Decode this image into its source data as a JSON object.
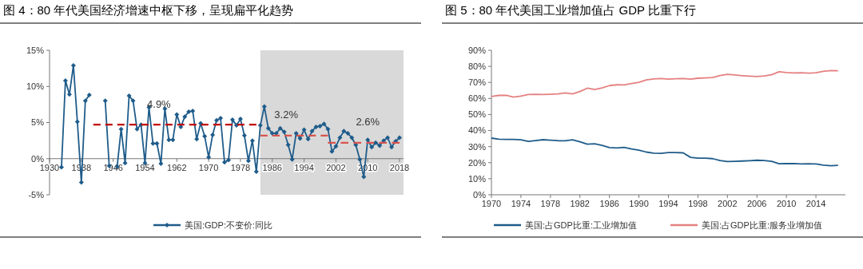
{
  "chart_data": [
    {
      "type": "line",
      "title": "图 4：80 年代美国经济增速中枢下移，呈现扁平化趋势",
      "x": [
        1933,
        1934,
        1935,
        1936,
        1937,
        1938,
        1939,
        1940,
        1941,
        1942,
        1943,
        1944,
        1945,
        1946,
        1947,
        1948,
        1949,
        1950,
        1951,
        1952,
        1953,
        1954,
        1955,
        1956,
        1957,
        1958,
        1959,
        1960,
        1961,
        1962,
        1963,
        1964,
        1965,
        1966,
        1967,
        1968,
        1969,
        1970,
        1971,
        1972,
        1973,
        1974,
        1975,
        1976,
        1977,
        1978,
        1979,
        1980,
        1981,
        1982,
        1983,
        1984,
        1985,
        1986,
        1987,
        1988,
        1989,
        1990,
        1991,
        1992,
        1993,
        1994,
        1995,
        1996,
        1997,
        1998,
        1999,
        2000,
        2001,
        2002,
        2003,
        2004,
        2005,
        2006,
        2007,
        2008,
        2009,
        2010,
        2011,
        2012,
        2013,
        2014,
        2015,
        2016,
        2017,
        2018
      ],
      "series": [
        {
          "name": "美国:GDP:不变价:同比",
          "color": "#1f5c8a",
          "values": [
            -1.2,
            10.8,
            8.9,
            12.9,
            5.1,
            -3.3,
            8.0,
            8.8,
            null,
            null,
            null,
            8.0,
            -1.0,
            null,
            -1.1,
            4.1,
            -0.6,
            8.7,
            8.0,
            4.1,
            4.7,
            -0.6,
            7.1,
            2.1,
            2.1,
            -0.7,
            6.9,
            2.6,
            2.6,
            6.1,
            4.4,
            5.8,
            6.5,
            6.6,
            2.7,
            4.9,
            3.1,
            0.2,
            3.3,
            5.3,
            5.6,
            -0.5,
            -0.2,
            5.4,
            4.6,
            5.5,
            3.2,
            -0.3,
            2.5,
            -1.8,
            4.6,
            7.2,
            4.2,
            3.5,
            3.5,
            4.2,
            3.7,
            1.9,
            -0.1,
            3.5,
            2.8,
            4.0,
            2.7,
            3.8,
            4.4,
            4.5,
            4.8,
            4.1,
            1.0,
            1.7,
            2.9,
            3.8,
            3.5,
            2.9,
            1.9,
            -0.1,
            -2.5,
            2.6,
            1.6,
            2.2,
            1.8,
            2.5,
            2.9,
            1.6,
            2.4,
            2.9
          ]
        },
        {
          "type": "line",
          "color": "#c00000",
          "x": [
            1941,
            1982
          ],
          "values": [
            4.7,
            4.7
          ],
          "line_style": "dashed",
          "marker": "none"
        },
        {
          "type": "line",
          "color": "#d9534f",
          "x": [
            1983,
            2000
          ],
          "values": [
            3.2,
            3.2
          ],
          "line_style": "dashed",
          "marker": "none"
        },
        {
          "type": "line",
          "color": "#d9534f",
          "x": [
            2000,
            2018
          ],
          "values": [
            2.2,
            2.2
          ],
          "line_style": "dashed",
          "marker": "none"
        }
      ],
      "xlim": [
        1930,
        2019
      ],
      "xticks": [
        1930,
        1938,
        1946,
        1954,
        1962,
        1970,
        1978,
        1986,
        1994,
        2002,
        2010,
        2018
      ],
      "ylim": [
        -5,
        15
      ],
      "yticks": [
        {
          "value": -5,
          "label": "-5%"
        },
        {
          "value": 0,
          "label": "0%"
        },
        {
          "value": 5,
          "label": "5%"
        },
        {
          "value": 10,
          "label": "10%"
        },
        {
          "value": 15,
          "label": "15%"
        }
      ],
      "bands": [
        {
          "axis": "x",
          "from": 1983,
          "to": 2019,
          "color": "#d9d9d9"
        }
      ],
      "annotations": [
        {
          "text": "4.9%",
          "x": 1957.5,
          "y": 4.7
        },
        {
          "text": "3.2%",
          "x": 1989.5,
          "y": 3.2
        },
        {
          "text": "2.6%",
          "x": 2010,
          "y": 2.2
        }
      ],
      "marker": "diamond",
      "legend": "bottom",
      "grid": false
    },
    {
      "type": "line",
      "title": "图 5：80 年代美国工业增加值占 GDP 比重下行",
      "x": [
        1970,
        1971,
        1972,
        1973,
        1974,
        1975,
        1976,
        1977,
        1978,
        1979,
        1980,
        1981,
        1982,
        1983,
        1984,
        1985,
        1986,
        1987,
        1988,
        1989,
        1990,
        1991,
        1992,
        1993,
        1994,
        1995,
        1996,
        1997,
        1998,
        1999,
        2000,
        2001,
        2002,
        2003,
        2004,
        2005,
        2006,
        2007,
        2008,
        2009,
        2010,
        2011,
        2012,
        2013,
        2014,
        2015,
        2016,
        2017
      ],
      "series": [
        {
          "name": "美国:占GDP比重:工业增加值",
          "color": "#1f5c8a",
          "values": [
            35.3,
            34.6,
            34.5,
            34.5,
            34.2,
            33.2,
            33.8,
            34.3,
            34.0,
            33.7,
            33.6,
            34.2,
            33.0,
            31.5,
            31.8,
            30.8,
            29.4,
            29.2,
            29.5,
            28.5,
            27.8,
            26.6,
            25.9,
            25.8,
            26.3,
            26.3,
            26.1,
            23.3,
            22.8,
            22.8,
            22.5,
            21.3,
            20.7,
            20.8,
            21.0,
            21.2,
            21.5,
            21.3,
            20.8,
            19.3,
            19.4,
            19.5,
            19.2,
            19.3,
            19.2,
            18.5,
            18.1,
            18.3
          ]
        },
        {
          "name": "美国:占GDP比重:服务业增加值",
          "color": "#e58080",
          "values": [
            61.2,
            61.9,
            62.0,
            60.8,
            61.5,
            62.5,
            62.6,
            62.5,
            62.6,
            62.8,
            63.5,
            62.8,
            64.3,
            66.4,
            65.6,
            66.6,
            68.0,
            68.5,
            68.4,
            69.3,
            70.0,
            71.5,
            72.2,
            72.4,
            72.0,
            72.3,
            72.4,
            72.0,
            72.6,
            72.8,
            73.0,
            74.3,
            75.0,
            74.6,
            74.2,
            73.9,
            73.7,
            74.0,
            74.8,
            76.6,
            76.1,
            75.9,
            76.0,
            75.8,
            76.0,
            76.9,
            77.4,
            77.3
          ]
        }
      ],
      "xlim": [
        1970,
        2018
      ],
      "xticks": [
        1970,
        1974,
        1978,
        1982,
        1986,
        1990,
        1994,
        1998,
        2002,
        2006,
        2010,
        2014
      ],
      "ylim": [
        0,
        90
      ],
      "yticks": [
        {
          "value": 0,
          "label": "0%"
        },
        {
          "value": 10,
          "label": "10%"
        },
        {
          "value": 20,
          "label": "20%"
        },
        {
          "value": 30,
          "label": "30%"
        },
        {
          "value": 40,
          "label": "40%"
        },
        {
          "value": 50,
          "label": "50%"
        },
        {
          "value": 60,
          "label": "60%"
        },
        {
          "value": 70,
          "label": "70%"
        },
        {
          "value": 80,
          "label": "80%"
        },
        {
          "value": 90,
          "label": "90%"
        }
      ],
      "marker": "none",
      "legend": "bottom",
      "grid": false
    }
  ]
}
